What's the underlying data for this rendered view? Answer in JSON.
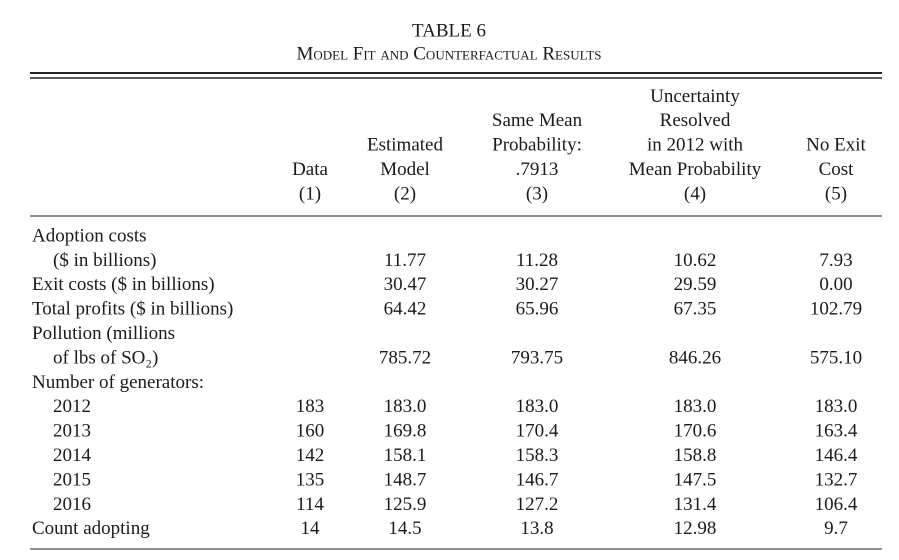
{
  "title": "TABLE 6",
  "subtitle": "Model Fit and Counterfactual Results",
  "columns": [
    {
      "header": [
        "Data",
        "(1)"
      ]
    },
    {
      "header": [
        "Estimated",
        "Model",
        "(2)"
      ]
    },
    {
      "header": [
        "Same Mean",
        "Probability:",
        ".7913",
        "(3)"
      ]
    },
    {
      "header": [
        "Uncertainty",
        "Resolved",
        "in 2012 with",
        "Mean Probability",
        "(4)"
      ]
    },
    {
      "header": [
        "No Exit",
        "Cost",
        "(5)"
      ]
    }
  ],
  "rows": [
    {
      "label": [
        "Adoption costs",
        "($ in billions)"
      ],
      "values": [
        null,
        "11.77",
        "11.28",
        "10.62",
        "7.93"
      ]
    },
    {
      "label": [
        "Exit costs ($ in billions)"
      ],
      "values": [
        null,
        "30.47",
        "30.27",
        "29.59",
        "0.00"
      ]
    },
    {
      "label": [
        "Total profits ($ in billions)"
      ],
      "values": [
        null,
        "64.42",
        "65.96",
        "67.35",
        "102.79"
      ]
    },
    {
      "label": [
        "Pollution (millions",
        "of lbs of SO₂)"
      ],
      "values": [
        null,
        "785.72",
        "793.75",
        "846.26",
        "575.10"
      ]
    },
    {
      "label": [
        "Number of generators:"
      ],
      "subrows": [
        {
          "label": "2012",
          "values": [
            "183",
            "183.0",
            "183.0",
            "183.0",
            "183.0"
          ]
        },
        {
          "label": "2013",
          "values": [
            "160",
            "169.8",
            "170.4",
            "170.6",
            "163.4"
          ]
        },
        {
          "label": "2014",
          "values": [
            "142",
            "158.1",
            "158.3",
            "158.8",
            "146.4"
          ]
        },
        {
          "label": "2015",
          "values": [
            "135",
            "148.7",
            "146.7",
            "147.5",
            "132.7"
          ]
        },
        {
          "label": "2016",
          "values": [
            "114",
            "125.9",
            "127.2",
            "131.4",
            "106.4"
          ]
        }
      ]
    },
    {
      "label": [
        "Count adopting"
      ],
      "values": [
        "14",
        "14.5",
        "13.8",
        "12.98",
        "9.7"
      ]
    }
  ]
}
